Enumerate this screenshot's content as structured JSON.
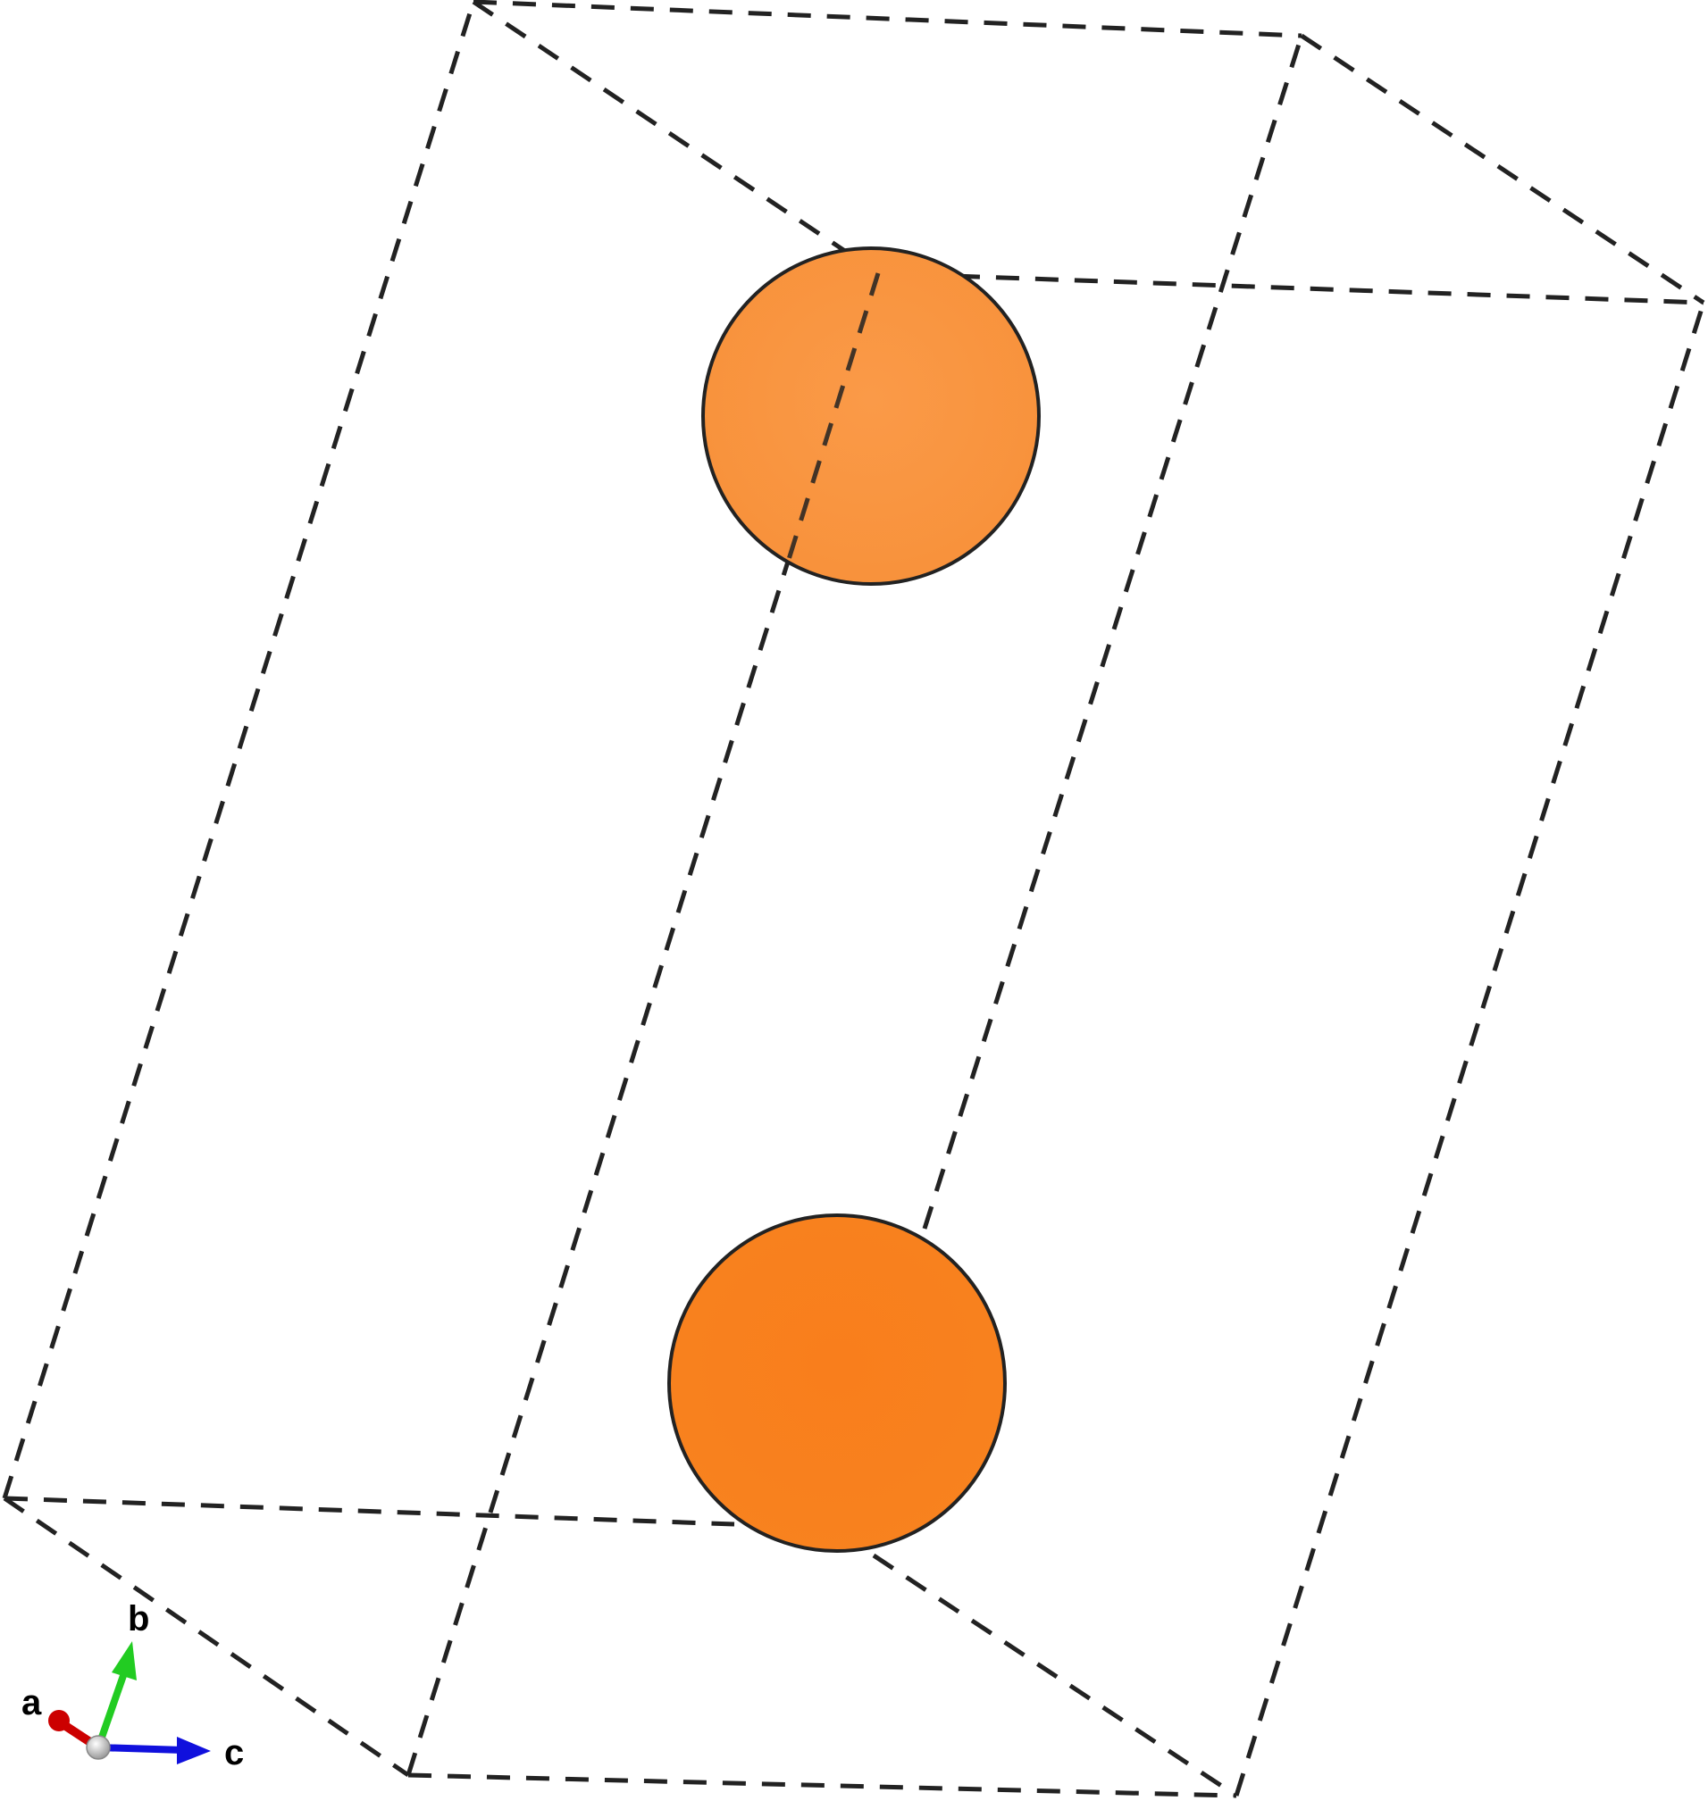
{
  "structure": {
    "atoms": [
      {
        "id": "atom-top",
        "color": "#F9953F"
      },
      {
        "id": "atom-bottom",
        "color": "#F8801E"
      }
    ],
    "cell_line_color": "#222222"
  },
  "axes": {
    "a": {
      "label": "a",
      "color": "#CC0000"
    },
    "b": {
      "label": "b",
      "color": "#22CC22"
    },
    "c": {
      "label": "c",
      "color": "#1010DD"
    },
    "origin_color": "#BBBBBB"
  }
}
